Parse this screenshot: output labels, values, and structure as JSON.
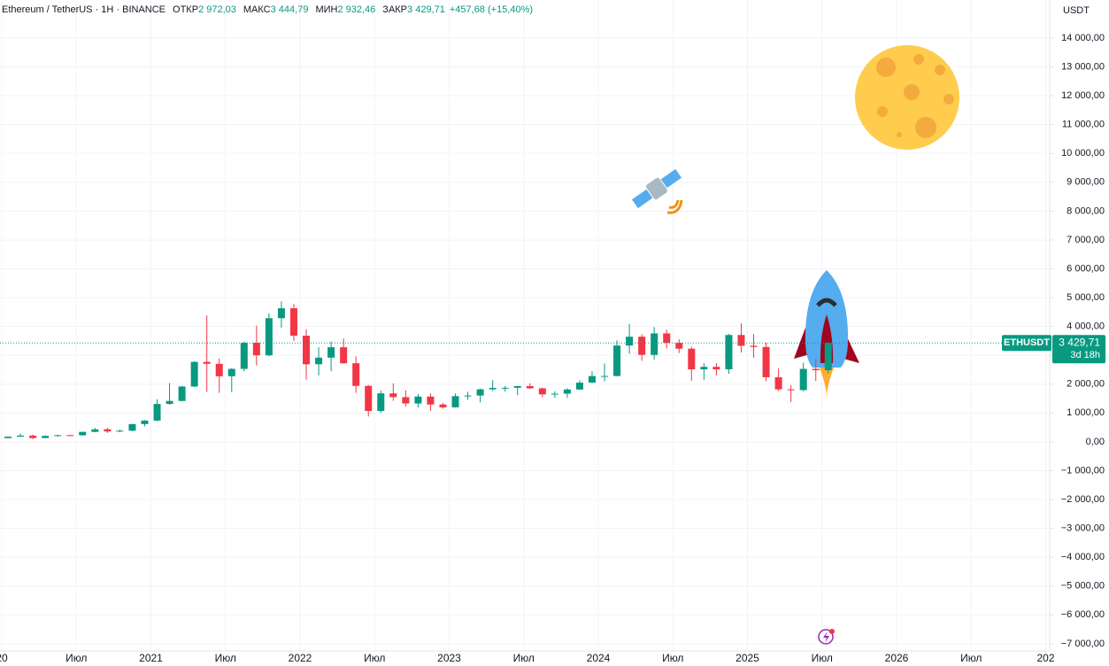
{
  "chart_data": {
    "type": "candlestick",
    "header": {
      "symbol": "Ethereum / TetherUS · 1Н · BINANCE",
      "ohlc": [
        {
          "label": "ОТКР",
          "value": "2 972,03"
        },
        {
          "label": "МАКС",
          "value": "3 444,79"
        },
        {
          "label": "МИН",
          "value": "2 932,46"
        },
        {
          "label": "ЗАКР",
          "value": "3 429,71"
        }
      ],
      "change": "+457,68 (+15,40%)"
    },
    "unit": "USDT",
    "symbol_label": "ETHUSDT",
    "last_price": {
      "value": 3429.71,
      "label": "3 429,71"
    },
    "countdown": "3d 18h",
    "up_color": "#089981",
    "down_color": "#f23645",
    "grid": true,
    "ylim": [
      -7250,
      15320
    ],
    "yticks": [
      {
        "value": 14000,
        "label": "14 000,00"
      },
      {
        "value": 13000,
        "label": "13 000,00"
      },
      {
        "value": 12000,
        "label": "12 000,00"
      },
      {
        "value": 11000,
        "label": "11 000,00"
      },
      {
        "value": 10000,
        "label": "10 000,00"
      },
      {
        "value": 9000,
        "label": "9 000,00"
      },
      {
        "value": 8000,
        "label": "8 000,00"
      },
      {
        "value": 7000,
        "label": "7 000,00"
      },
      {
        "value": 6000,
        "label": "6 000,00"
      },
      {
        "value": 5000,
        "label": "5 000,00"
      },
      {
        "value": 4000,
        "label": "4 000,00"
      },
      {
        "value": 3000,
        "label": "3 000,00"
      },
      {
        "value": 2000,
        "label": "2 000,00"
      },
      {
        "value": 1000,
        "label": "1 000,00"
      },
      {
        "value": 0,
        "label": "0,00"
      },
      {
        "value": -1000,
        "label": "−1 000,00"
      },
      {
        "value": -2000,
        "label": "−2 000,00"
      },
      {
        "value": -3000,
        "label": "−3 000,00"
      },
      {
        "value": -4000,
        "label": "−4 000,00"
      },
      {
        "value": -5000,
        "label": "−5 000,00"
      },
      {
        "value": -6000,
        "label": "−6 000,00"
      },
      {
        "value": -7000,
        "label": "−7 000,00"
      }
    ],
    "xticks": [
      {
        "value": "2020-01",
        "label": "20"
      },
      {
        "value": "2020-07",
        "label": "Июл"
      },
      {
        "value": "2021-01",
        "label": "2021"
      },
      {
        "value": "2021-07",
        "label": "Июл"
      },
      {
        "value": "2022-01",
        "label": "2022"
      },
      {
        "value": "2022-07",
        "label": "Июл"
      },
      {
        "value": "2023-01",
        "label": "2023"
      },
      {
        "value": "2023-07",
        "label": "Июл"
      },
      {
        "value": "2024-01",
        "label": "2024"
      },
      {
        "value": "2024-07",
        "label": "Июл"
      },
      {
        "value": "2025-01",
        "label": "2025"
      },
      {
        "value": "2025-07",
        "label": "Июл"
      },
      {
        "value": "2026-01",
        "label": "2026"
      },
      {
        "value": "2026-07",
        "label": "Июл"
      },
      {
        "value": "2027-01",
        "label": "202"
      }
    ],
    "x": [
      "2020-01",
      "2020-02",
      "2020-03",
      "2020-04",
      "2020-05",
      "2020-06",
      "2020-07",
      "2020-08",
      "2020-09",
      "2020-10",
      "2020-11",
      "2020-12",
      "2021-01",
      "2021-02",
      "2021-03",
      "2021-04",
      "2021-05",
      "2021-06",
      "2021-07",
      "2021-08",
      "2021-09",
      "2021-10",
      "2021-11",
      "2021-12",
      "2022-01",
      "2022-02",
      "2022-03",
      "2022-04",
      "2022-05",
      "2022-06",
      "2022-07",
      "2022-08",
      "2022-09",
      "2022-10",
      "2022-11",
      "2022-12",
      "2023-01",
      "2023-02",
      "2023-03",
      "2023-04",
      "2023-05",
      "2023-06",
      "2023-07",
      "2023-08",
      "2023-09",
      "2023-10",
      "2023-11",
      "2023-12",
      "2024-01",
      "2024-02",
      "2024-03",
      "2024-04",
      "2024-05",
      "2024-06",
      "2024-07",
      "2024-08",
      "2024-09",
      "2024-10",
      "2024-11",
      "2024-12",
      "2025-01",
      "2025-02",
      "2025-03",
      "2025-04",
      "2025-05",
      "2025-06",
      "2025-07"
    ],
    "ohlc": [
      [
        129,
        180,
        127,
        179
      ],
      [
        179,
        288,
        170,
        217
      ],
      [
        217,
        253,
        90,
        133
      ],
      [
        133,
        227,
        130,
        206
      ],
      [
        206,
        247,
        177,
        231
      ],
      [
        231,
        254,
        216,
        226
      ],
      [
        226,
        346,
        222,
        345
      ],
      [
        345,
        488,
        335,
        434
      ],
      [
        434,
        488,
        308,
        360
      ],
      [
        360,
        420,
        335,
        386
      ],
      [
        386,
        622,
        370,
        616
      ],
      [
        616,
        755,
        535,
        737
      ],
      [
        737,
        1475,
        714,
        1314
      ],
      [
        1314,
        2040,
        1290,
        1418
      ],
      [
        1418,
        1940,
        1400,
        1918
      ],
      [
        1918,
        2795,
        1900,
        2772
      ],
      [
        2772,
        4380,
        1730,
        2706
      ],
      [
        2706,
        2890,
        1700,
        2275
      ],
      [
        2275,
        2550,
        1720,
        2530
      ],
      [
        2530,
        3470,
        2450,
        3433
      ],
      [
        3433,
        4030,
        2650,
        3000
      ],
      [
        3000,
        4460,
        2970,
        4288
      ],
      [
        4288,
        4870,
        3960,
        4631
      ],
      [
        4631,
        4780,
        3500,
        3680
      ],
      [
        3680,
        3900,
        2160,
        2690
      ],
      [
        2690,
        3280,
        2300,
        2920
      ],
      [
        2920,
        3480,
        2450,
        3280
      ],
      [
        3280,
        3580,
        2710,
        2725
      ],
      [
        2725,
        2960,
        1700,
        1940
      ],
      [
        1940,
        1970,
        880,
        1070
      ],
      [
        1070,
        1780,
        1000,
        1680
      ],
      [
        1680,
        2030,
        1420,
        1550
      ],
      [
        1550,
        1790,
        1220,
        1330
      ],
      [
        1330,
        1660,
        1190,
        1570
      ],
      [
        1570,
        1680,
        1070,
        1295
      ],
      [
        1295,
        1350,
        1150,
        1196
      ],
      [
        1196,
        1680,
        1190,
        1585
      ],
      [
        1585,
        1740,
        1460,
        1605
      ],
      [
        1605,
        1850,
        1370,
        1822
      ],
      [
        1822,
        2140,
        1760,
        1870
      ],
      [
        1870,
        1930,
        1740,
        1875
      ],
      [
        1875,
        1935,
        1620,
        1934
      ],
      [
        1934,
        2030,
        1830,
        1855
      ],
      [
        1855,
        1880,
        1550,
        1645
      ],
      [
        1645,
        1750,
        1530,
        1670
      ],
      [
        1670,
        1860,
        1520,
        1815
      ],
      [
        1815,
        2130,
        1800,
        2052
      ],
      [
        2052,
        2450,
        2040,
        2282
      ],
      [
        2282,
        2720,
        2100,
        2283
      ],
      [
        2283,
        3520,
        2270,
        3340
      ],
      [
        3340,
        4090,
        3050,
        3645
      ],
      [
        3645,
        3730,
        2810,
        3015
      ],
      [
        3015,
        3980,
        2860,
        3760
      ],
      [
        3760,
        3890,
        3240,
        3430
      ],
      [
        3430,
        3560,
        3080,
        3230
      ],
      [
        3230,
        3300,
        2120,
        2515
      ],
      [
        2515,
        2730,
        2150,
        2600
      ],
      [
        2600,
        2730,
        2300,
        2515
      ],
      [
        2515,
        3740,
        2360,
        3705
      ],
      [
        3705,
        4110,
        3100,
        3330
      ],
      [
        3330,
        3740,
        2920,
        3290
      ],
      [
        3290,
        3440,
        2100,
        2240
      ],
      [
        2240,
        2550,
        1760,
        1820
      ],
      [
        1820,
        1960,
        1380,
        1795
      ],
      [
        1795,
        2740,
        1750,
        2530
      ],
      [
        2530,
        2880,
        2110,
        2485
      ],
      [
        2485,
        3444.79,
        2370,
        3429.71
      ]
    ]
  }
}
